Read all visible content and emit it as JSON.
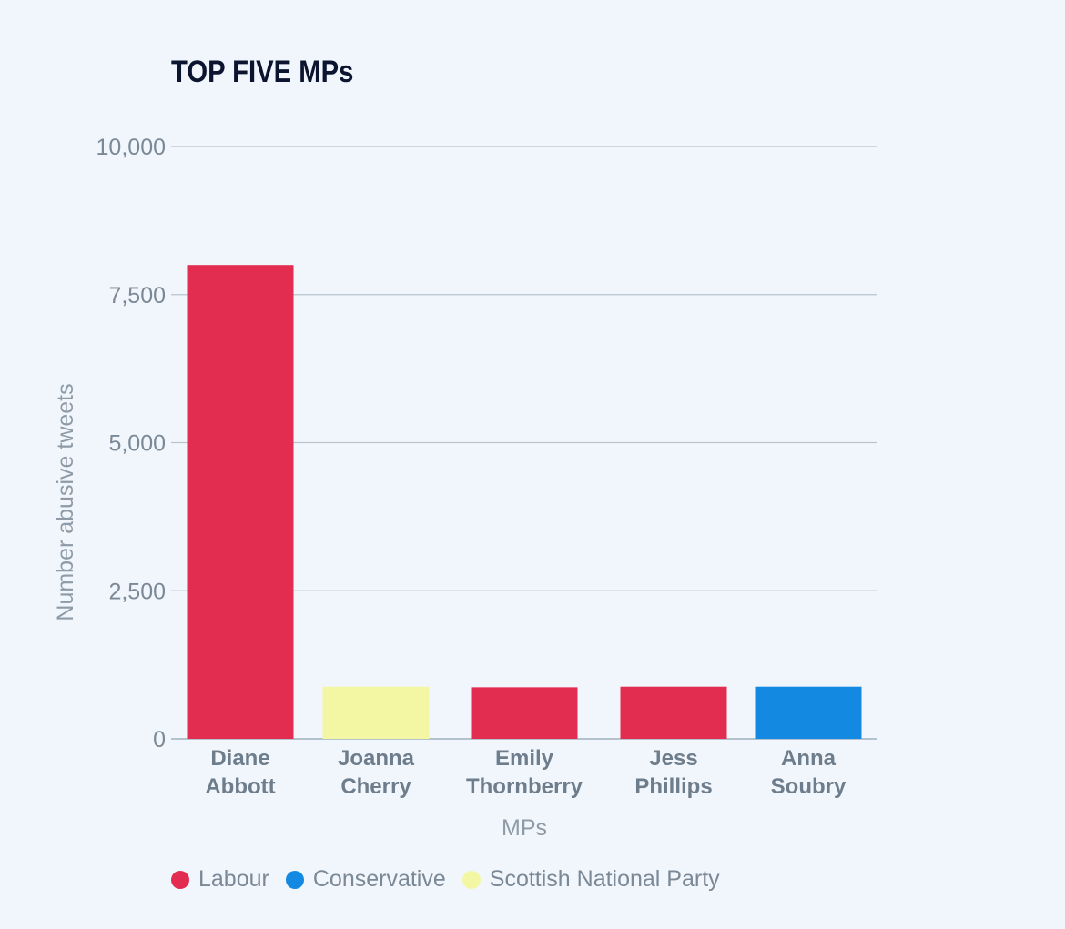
{
  "chart_data": {
    "type": "bar",
    "title": "TOP FIVE MPs",
    "xlabel": "MPs",
    "ylabel": "Number abusive tweets",
    "ylim": [
      0,
      10000
    ],
    "yticks": [
      0,
      2500,
      5000,
      7500,
      10000
    ],
    "ytick_labels": [
      "0",
      "2,500",
      "5,000",
      "7,500",
      "10,000"
    ],
    "grid": true,
    "legend_position": "bottom-left",
    "categories": [
      {
        "line1": "Diane",
        "line2": "Abbott"
      },
      {
        "line1": "Joanna",
        "line2": "Cherry"
      },
      {
        "line1": "Emily",
        "line2": "Thornberry"
      },
      {
        "line1": "Jess",
        "line2": "Phillips"
      },
      {
        "line1": "Anna",
        "line2": "Soubry"
      }
    ],
    "values": [
      8000,
      880,
      870,
      880,
      880
    ],
    "bar_parties": [
      "Labour",
      "Scottish National Party",
      "Labour",
      "Labour",
      "Conservative"
    ],
    "legend": [
      {
        "label": "Labour",
        "color": "#e22c50"
      },
      {
        "label": "Conservative",
        "color": "#1389e2"
      },
      {
        "label": "Scottish National Party",
        "color": "#f3f7a4"
      }
    ]
  }
}
